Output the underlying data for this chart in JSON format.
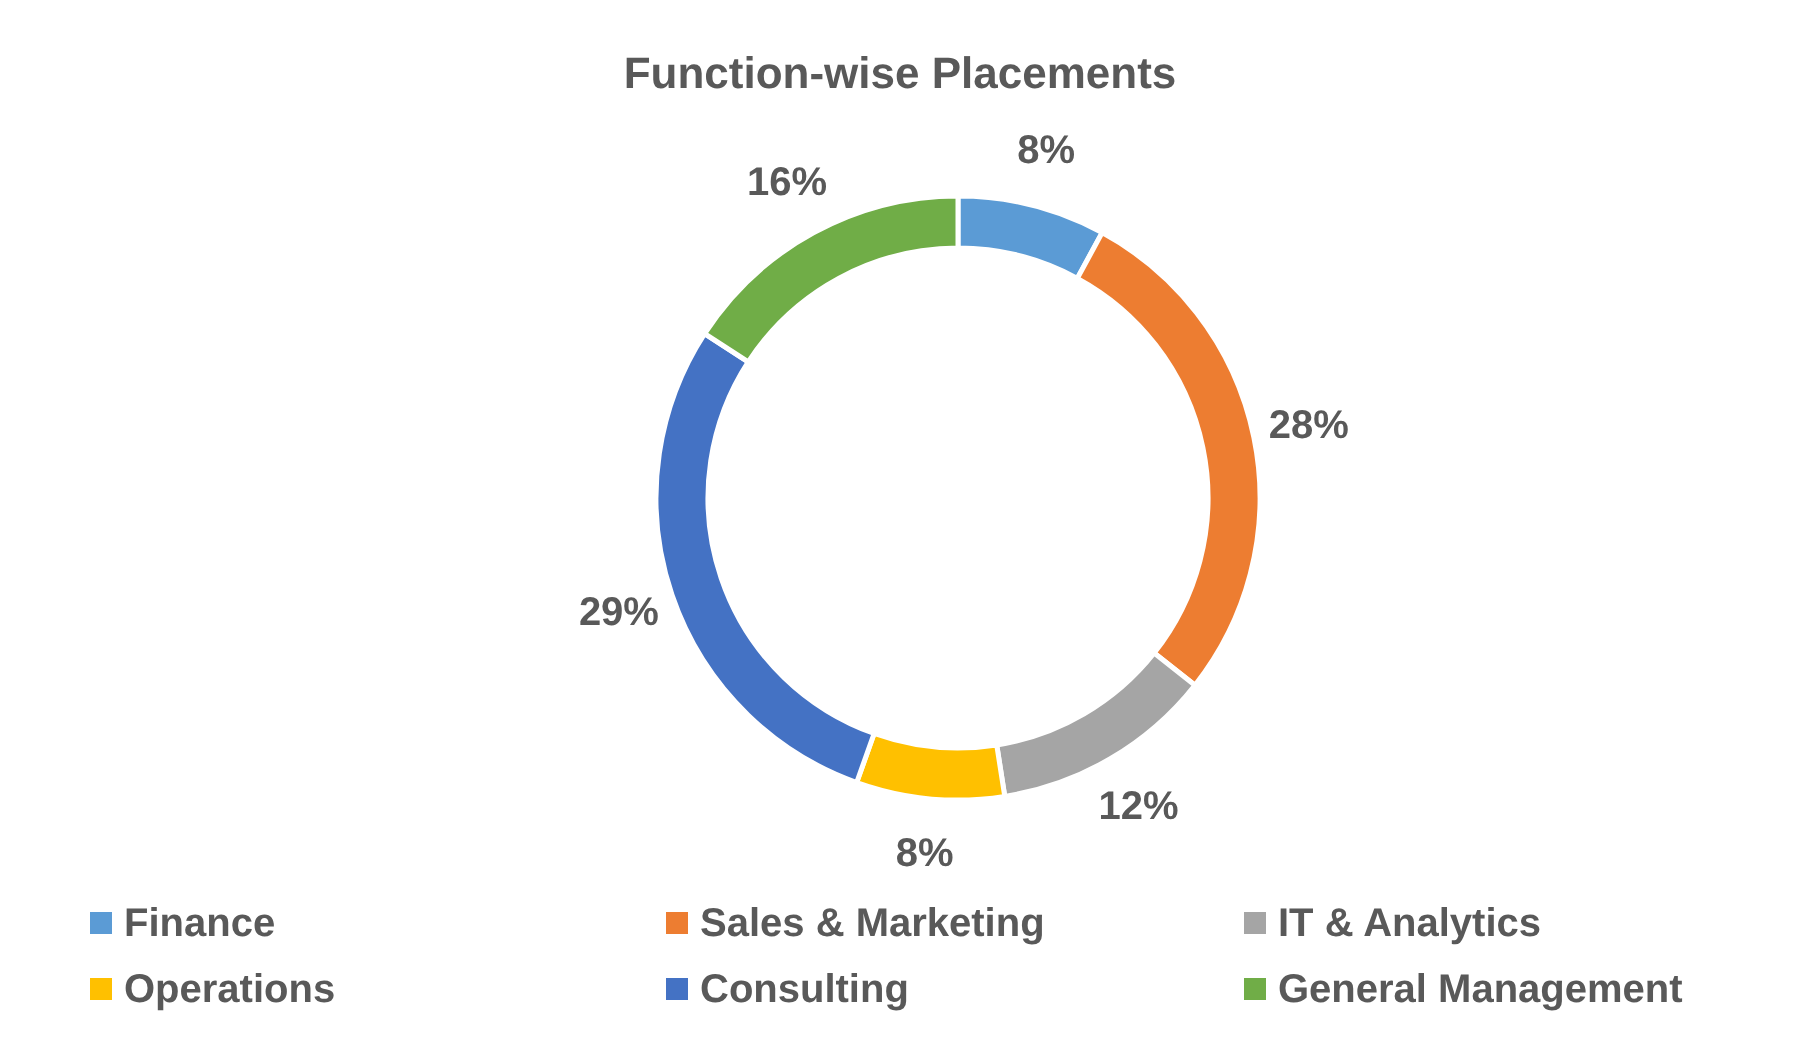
{
  "chart_data": {
    "type": "donut",
    "title": "Function-wise Placements",
    "categories": [
      "Finance",
      "Sales & Marketing",
      "IT & Analytics",
      "Operations",
      "Consulting",
      "General Management"
    ],
    "values": [
      8,
      28,
      12,
      8,
      29,
      16
    ],
    "colors": [
      "#5b9bd5",
      "#ed7d31",
      "#a5a5a5",
      "#ffc000",
      "#4472c4",
      "#70ad47"
    ],
    "value_labels": [
      "8%",
      "28%",
      "12%",
      "8%",
      "29%",
      "16%"
    ],
    "legend": "bottom"
  }
}
